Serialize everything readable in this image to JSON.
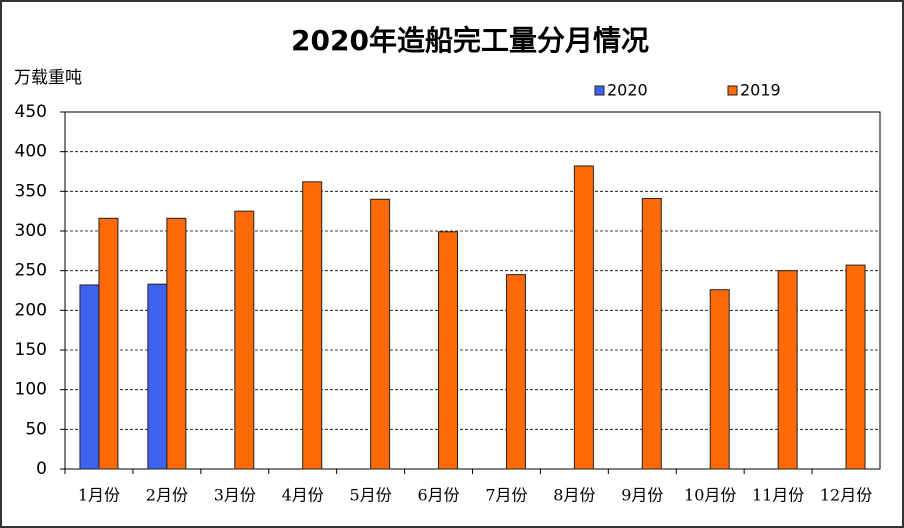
{
  "chart_data": {
    "type": "bar",
    "title": "2020年造船完工量分月情况",
    "y_label": "万载重吨",
    "categories": [
      "1月份",
      "2月份",
      "3月份",
      "4月份",
      "5月份",
      "6月份",
      "7月份",
      "8月份",
      "9月份",
      "10月份",
      "11月份",
      "12月份"
    ],
    "series": [
      {
        "name": "2020",
        "color": "#3f63ee",
        "values": [
          232,
          233,
          null,
          null,
          null,
          null,
          null,
          null,
          null,
          null,
          null,
          null
        ]
      },
      {
        "name": "2019",
        "color": "#ff6a08",
        "values": [
          316,
          316,
          325,
          362,
          340,
          299,
          245,
          382,
          341,
          226,
          250,
          257
        ]
      }
    ],
    "ylim": [
      0,
      450
    ],
    "yticks": [
      0,
      50,
      100,
      150,
      200,
      250,
      300,
      350,
      400,
      450
    ],
    "grid": true,
    "legend": "top-right"
  }
}
